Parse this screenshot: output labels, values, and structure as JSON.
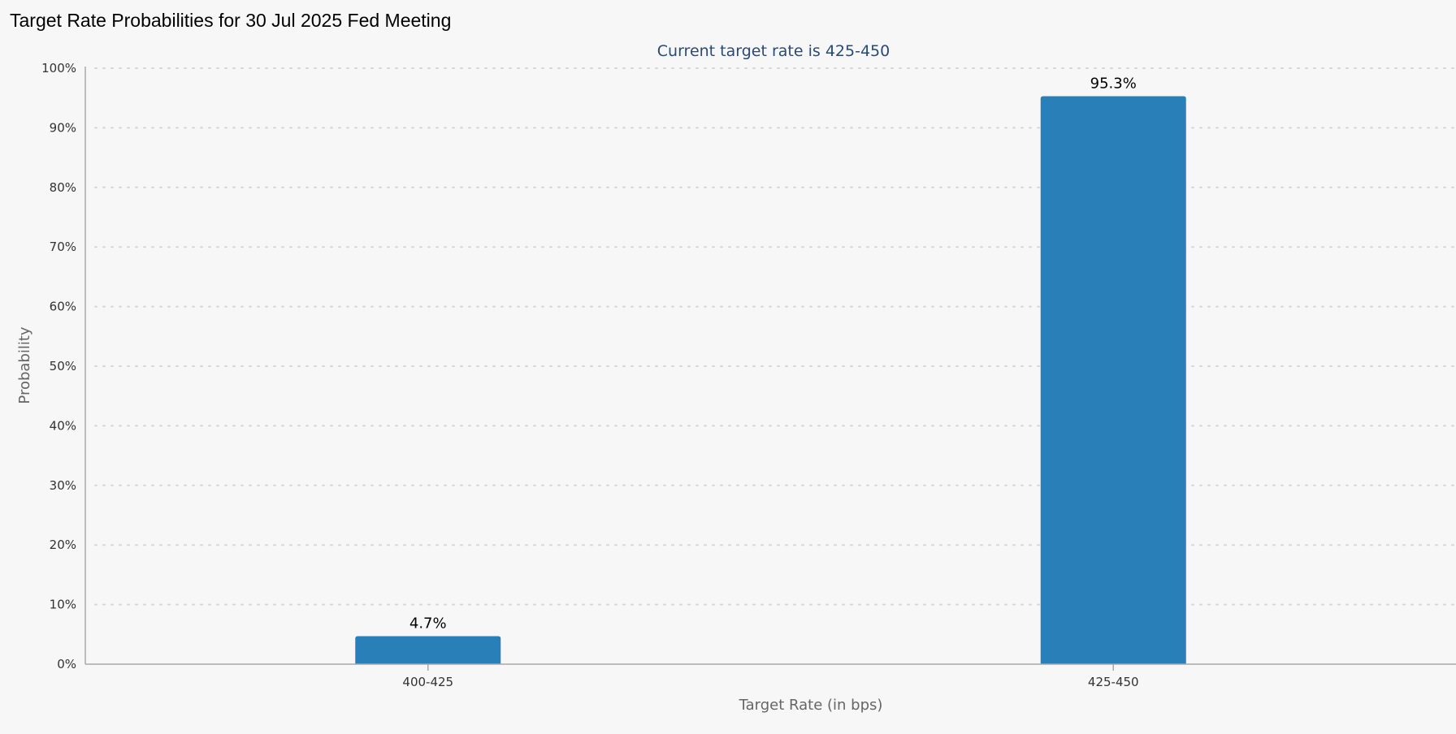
{
  "chart_data": {
    "type": "bar",
    "title": "Target Rate Probabilities for 30 Jul 2025 Fed Meeting",
    "subtitle": "Current target rate is 425-450",
    "xlabel": "Target Rate (in bps)",
    "ylabel": "Probability",
    "categories": [
      "400-425",
      "425-450"
    ],
    "values": [
      4.7,
      95.3
    ],
    "data_labels": [
      "4.7%",
      "95.3%"
    ],
    "ylim": [
      0,
      100
    ],
    "yticks": [
      0,
      10,
      20,
      30,
      40,
      50,
      60,
      70,
      80,
      90,
      100
    ],
    "ytick_labels": [
      "0%",
      "10%",
      "20%",
      "30%",
      "40%",
      "50%",
      "60%",
      "70%",
      "80%",
      "90%",
      "100%"
    ],
    "grid": true,
    "legend": "none",
    "bar_color": "#2980b9"
  }
}
